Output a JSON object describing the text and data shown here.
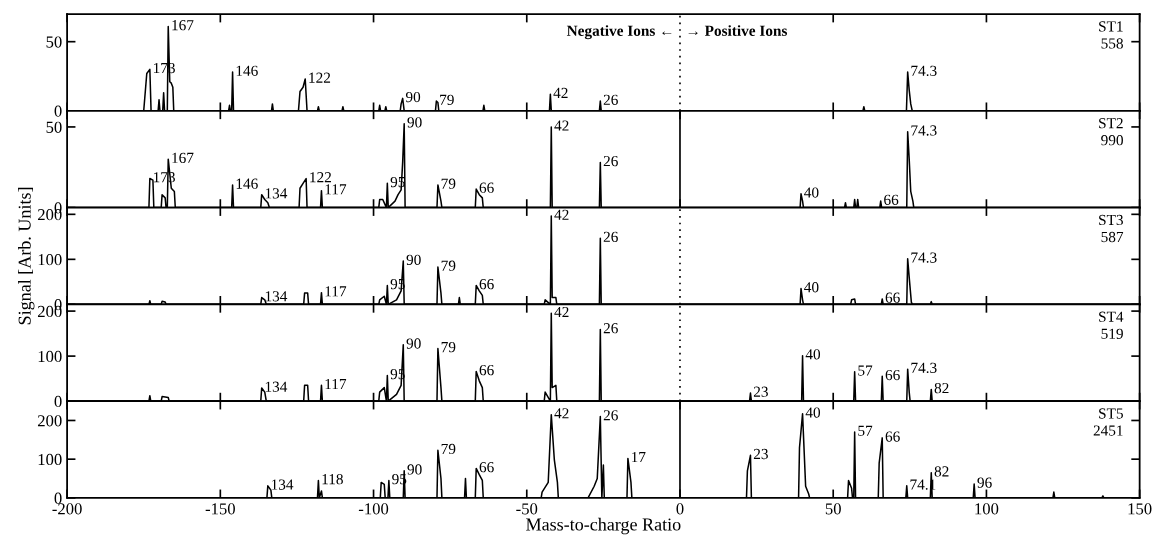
{
  "chart_data": [
    {
      "type": "line",
      "color": "#000000",
      "xlim": [
        -200,
        150
      ],
      "xticks": [
        -200,
        -150,
        -100,
        -50,
        0,
        50,
        100,
        150
      ],
      "ylim": [
        0,
        70
      ],
      "yticks": [
        0,
        50
      ],
      "tick_labels": "y",
      "x": [
        -200,
        -175,
        -174,
        -173,
        -172.6,
        -170.3,
        -170,
        -169.7,
        -168.8,
        -168.5,
        -168.2,
        -167.3,
        -167,
        -166.5,
        -166,
        -165.5,
        -165.2,
        -147.3,
        -147,
        -146.7,
        -146.3,
        -146,
        -145.7,
        -133.3,
        -133,
        -132.7,
        -124.5,
        -124,
        -123,
        -122.3,
        -121.7,
        -118.3,
        -118,
        -117.7,
        -110.3,
        -110,
        -109.7,
        -98.3,
        -98,
        -97.7,
        -96.3,
        -96,
        -95.7,
        -91.3,
        -91,
        -90.5,
        -90,
        -79.8,
        -79.5,
        -79,
        -78.7,
        -64.3,
        -64,
        -63.7,
        -42.6,
        -42.3,
        -42,
        -26.3,
        -26,
        -25.7,
        59.7,
        60,
        60.3,
        73.9,
        74.3,
        74.8,
        75.3,
        75.8,
        150
      ],
      "values": [
        0,
        0,
        27,
        30,
        0,
        0,
        8,
        0,
        0,
        13,
        0,
        0,
        61,
        21,
        20,
        17,
        0,
        0,
        4,
        0,
        0,
        28,
        0,
        0,
        5,
        0,
        0,
        14,
        17,
        23,
        0,
        0,
        3,
        0,
        0,
        3,
        0,
        0,
        4,
        0,
        0,
        3,
        0,
        0,
        5,
        9,
        0,
        0,
        7,
        6,
        0,
        0,
        4,
        0,
        0,
        12,
        0,
        0,
        7,
        0,
        0,
        3,
        0,
        0,
        28,
        15,
        5,
        0,
        0
      ],
      "ref_lines": [
        {
          "axis": "x",
          "value": 0,
          "line_style": "dotted"
        }
      ],
      "annotations": [
        {
          "text": "173",
          "x": -173,
          "y": 30
        },
        {
          "text": "167",
          "x": -167,
          "y": 61
        },
        {
          "text": "146",
          "x": -146,
          "y": 28
        },
        {
          "text": "122",
          "x": -122.3,
          "y": 23
        },
        {
          "text": "90",
          "x": -90.5,
          "y": 9
        },
        {
          "text": "79",
          "x": -79.5,
          "y": 7
        },
        {
          "text": "42",
          "x": -42.3,
          "y": 12
        },
        {
          "text": "26",
          "x": -26,
          "y": 7
        },
        {
          "text": "74.3",
          "x": 74.3,
          "y": 28
        },
        "ST1\n558",
        "Negative Ions ←",
        "→ Positive Ions"
      ]
    },
    {
      "type": "line",
      "color": "#000000",
      "xlim": [
        -200,
        150
      ],
      "xticks": [
        -200,
        -150,
        -100,
        -50,
        0,
        50,
        100,
        150
      ],
      "ylim": [
        0,
        60
      ],
      "yticks": [
        0,
        50
      ],
      "tick_labels": "y",
      "x": [
        -200,
        -173.3,
        -173,
        -172,
        -171.7,
        -169.3,
        -169,
        -168,
        -167.7,
        -167.3,
        -167,
        -166,
        -165,
        -164.7,
        -146.3,
        -146,
        -145.7,
        -136.8,
        -136.5,
        -135.5,
        -134.5,
        -134,
        -124.3,
        -124,
        -123,
        -122,
        -121.7,
        -117.3,
        -117,
        -116.7,
        -98.3,
        -98,
        -97,
        -95.8,
        -95.5,
        -95.2,
        -93,
        -92,
        -91,
        -90.5,
        -90,
        -89.7,
        -79.3,
        -79,
        -78,
        -77.7,
        -66.8,
        -66.5,
        -65.5,
        -64.5,
        -64.2,
        -42.3,
        -42,
        -41.7,
        -26.3,
        -26,
        -25.7,
        39.2,
        39.5,
        40,
        40.3,
        53.7,
        54,
        54.3,
        56.7,
        57,
        57.3,
        57.7,
        58,
        58.3,
        65.2,
        65.5,
        65.8,
        74,
        74.3,
        74.8,
        75.3,
        76,
        76.3,
        150
      ],
      "values": [
        0,
        0,
        18,
        17,
        0,
        0,
        8,
        6,
        0,
        0,
        30,
        12,
        10,
        0,
        0,
        14,
        0,
        0,
        8,
        5,
        3,
        0,
        0,
        12,
        15,
        18,
        0,
        0,
        10.5,
        0,
        0,
        5,
        5,
        0,
        15,
        0,
        4,
        8,
        11,
        28,
        52,
        0,
        0,
        14,
        4,
        0,
        0,
        11.5,
        8,
        6,
        0,
        0,
        50,
        0,
        0,
        28,
        0,
        0,
        8.5,
        4,
        0,
        0,
        3,
        0,
        0,
        5,
        0,
        0,
        5,
        0,
        0,
        4,
        0,
        0,
        47,
        30,
        10,
        4,
        0,
        0
      ],
      "ref_lines": [
        {
          "axis": "x",
          "value": 0,
          "line_style": "solid"
        }
      ],
      "annotations": [
        {
          "text": "173",
          "x": -173,
          "y": 18
        },
        {
          "text": "167",
          "x": -167,
          "y": 30
        },
        {
          "text": "146",
          "x": -146,
          "y": 14
        },
        {
          "text": "134",
          "x": -136.5,
          "y": 8
        },
        {
          "text": "122",
          "x": -122,
          "y": 18
        },
        {
          "text": "117",
          "x": -117,
          "y": 10.5
        },
        {
          "text": "95",
          "x": -95.5,
          "y": 15
        },
        {
          "text": "90",
          "x": -90,
          "y": 52
        },
        {
          "text": "79",
          "x": -79,
          "y": 14
        },
        {
          "text": "66",
          "x": -66.5,
          "y": 11.5
        },
        {
          "text": "42",
          "x": -42,
          "y": 50
        },
        {
          "text": "26",
          "x": -26,
          "y": 28
        },
        {
          "text": "40",
          "x": 39.5,
          "y": 8.5
        },
        {
          "text": "66",
          "x": 65.5,
          "y": 4
        },
        {
          "text": "74.3",
          "x": 74.3,
          "y": 47
        },
        "ST2\n990"
      ]
    },
    {
      "type": "line",
      "color": "#000000",
      "xlim": [
        -200,
        150
      ],
      "xticks": [
        -200,
        -150,
        -100,
        -50,
        0,
        50,
        100,
        150
      ],
      "ylim": [
        0,
        215
      ],
      "yticks": [
        0,
        100,
        200
      ],
      "tick_labels": "y",
      "ylabel": "Signal [Arb. Units]",
      "x": [
        -200,
        -173.3,
        -173,
        -172.7,
        -169.3,
        -169,
        -168,
        -167.7,
        -136.8,
        -136.5,
        -135.5,
        -135,
        -122.8,
        -122.5,
        -121.5,
        -121.2,
        -117.3,
        -117,
        -116.7,
        -98.3,
        -98,
        -96.5,
        -95.8,
        -95.5,
        -95.2,
        -92.5,
        -91,
        -90.3,
        -90,
        -79.3,
        -79,
        -78,
        -77.7,
        -72.3,
        -72,
        -71.7,
        -66.8,
        -66.5,
        -65.5,
        -64.5,
        -64.2,
        -44.3,
        -44,
        -42.3,
        -42,
        -41.7,
        -40.5,
        -40.2,
        -26.3,
        -26,
        -25.7,
        39.2,
        39.5,
        40,
        40.3,
        55.7,
        56,
        57,
        57.3,
        65.7,
        66,
        66.3,
        74,
        74.3,
        74.8,
        75.5,
        75.8,
        81.7,
        82,
        82.3,
        150
      ],
      "values": [
        0,
        0,
        8,
        0,
        0,
        7,
        5,
        0,
        0,
        15,
        10,
        0,
        0,
        25,
        25,
        0,
        0,
        26,
        0,
        0,
        10,
        18,
        0,
        42,
        0,
        10,
        30,
        96,
        0,
        0,
        83,
        25,
        0,
        0,
        15,
        0,
        0,
        42,
        30,
        20,
        0,
        0,
        10,
        0,
        196,
        15,
        15,
        0,
        0,
        147,
        0,
        0,
        35,
        10,
        0,
        0,
        10,
        12,
        0,
        0,
        12,
        0,
        0,
        101,
        60,
        5,
        0,
        0,
        6,
        0,
        0
      ],
      "ref_lines": [
        {
          "axis": "x",
          "value": 0,
          "line_style": "dotted"
        }
      ],
      "annotations": [
        {
          "text": "134",
          "x": -136.5,
          "y": 15
        },
        {
          "text": "117",
          "x": -117,
          "y": 26
        },
        {
          "text": "95",
          "x": -95.5,
          "y": 42
        },
        {
          "text": "90",
          "x": -90.3,
          "y": 96
        },
        {
          "text": "79",
          "x": -79,
          "y": 83
        },
        {
          "text": "66",
          "x": -66.5,
          "y": 42
        },
        {
          "text": "42",
          "x": -42,
          "y": 196
        },
        {
          "text": "26",
          "x": -26,
          "y": 147
        },
        {
          "text": "40",
          "x": 39.5,
          "y": 35
        },
        {
          "text": "66",
          "x": 66,
          "y": 12
        },
        {
          "text": "74.3",
          "x": 74.3,
          "y": 101
        },
        "ST3\n587"
      ]
    },
    {
      "type": "line",
      "color": "#000000",
      "xlim": [
        -200,
        150
      ],
      "xticks": [
        -200,
        -150,
        -100,
        -50,
        0,
        50,
        100,
        150
      ],
      "ylim": [
        0,
        215
      ],
      "yticks": [
        0,
        100,
        200
      ],
      "tick_labels": "y",
      "x": [
        -200,
        -173.3,
        -173,
        -172.7,
        -169.3,
        -169,
        -167,
        -166.7,
        -136.8,
        -136.5,
        -135.5,
        -135,
        -122.8,
        -122.5,
        -121.5,
        -121.2,
        -117.3,
        -117,
        -116.7,
        -98.3,
        -98,
        -96.5,
        -95.8,
        -95.5,
        -95.2,
        -92.5,
        -91,
        -90.3,
        -90,
        -79.3,
        -79,
        -78,
        -77.7,
        -66.8,
        -66.5,
        -65.5,
        -64.5,
        -64.2,
        -44.3,
        -44,
        -42.3,
        -42,
        -41.7,
        -40.5,
        -40.2,
        -26.3,
        -26,
        -25.7,
        22.7,
        23,
        23.3,
        39.7,
        40,
        40.3,
        56.7,
        57,
        57.3,
        65.7,
        66,
        66.3,
        74,
        74.3,
        74.8,
        75.1,
        81.7,
        82,
        82.3,
        150
      ],
      "values": [
        0,
        0,
        12,
        0,
        0,
        10,
        8,
        0,
        0,
        29,
        20,
        0,
        0,
        35,
        35,
        0,
        0,
        35,
        0,
        0,
        20,
        30,
        0,
        57,
        0,
        15,
        35,
        125,
        0,
        0,
        117,
        30,
        0,
        0,
        66,
        45,
        30,
        0,
        0,
        20,
        0,
        195,
        30,
        35,
        0,
        0,
        159,
        0,
        0,
        18,
        0,
        0,
        101,
        0,
        0,
        65,
        0,
        0,
        55,
        0,
        0,
        71,
        20,
        0,
        0,
        26,
        0,
        0
      ],
      "ref_lines": [
        {
          "axis": "x",
          "value": 0,
          "line_style": "dotted"
        }
      ],
      "annotations": [
        {
          "text": "134",
          "x": -136.5,
          "y": 29
        },
        {
          "text": "117",
          "x": -117,
          "y": 35
        },
        {
          "text": "95",
          "x": -95.5,
          "y": 57
        },
        {
          "text": "90",
          "x": -90.3,
          "y": 125
        },
        {
          "text": "79",
          "x": -79,
          "y": 117
        },
        {
          "text": "66",
          "x": -66.5,
          "y": 66
        },
        {
          "text": "42",
          "x": -42,
          "y": 195
        },
        {
          "text": "26",
          "x": -26,
          "y": 159
        },
        {
          "text": "23",
          "x": 23,
          "y": 18
        },
        {
          "text": "40",
          "x": 40,
          "y": 101
        },
        {
          "text": "57",
          "x": 57,
          "y": 65
        },
        {
          "text": "66",
          "x": 66,
          "y": 55
        },
        {
          "text": "74.3",
          "x": 74.3,
          "y": 71
        },
        {
          "text": "82",
          "x": 82,
          "y": 26
        },
        "ST4\n519"
      ]
    },
    {
      "type": "line",
      "color": "#000000",
      "xlim": [
        -200,
        150
      ],
      "xticks": [
        -200,
        -150,
        -100,
        -50,
        0,
        50,
        100,
        150
      ],
      "ylim": [
        0,
        250
      ],
      "yticks": [
        0,
        100,
        200
      ],
      "xlabel": "Mass-to-charge Ratio",
      "x": [
        -200,
        -134.8,
        -134.5,
        -133.5,
        -133.2,
        -118.3,
        -118,
        -117.7,
        -117,
        -116.7,
        -97.8,
        -97.5,
        -96.5,
        -96.2,
        -95.3,
        -95,
        -94.7,
        -90.3,
        -90,
        -89.7,
        -79.3,
        -79,
        -78,
        -77.7,
        -70.3,
        -70,
        -69.7,
        -66.8,
        -66.5,
        -65.5,
        -64.5,
        -64.2,
        -45.3,
        -45,
        -43,
        -42,
        -41,
        -40,
        -39.7,
        -30,
        -28,
        -27,
        -26,
        -25.5,
        -25,
        -24.7,
        -17.3,
        -17,
        -16,
        -15.7,
        21.7,
        22,
        23,
        23.3,
        38.7,
        39,
        40,
        41,
        42,
        42.3,
        54.7,
        55,
        56,
        56.3,
        56.7,
        57,
        57.3,
        64.7,
        65,
        66,
        66.3,
        73.7,
        74,
        74.3,
        81.7,
        82,
        82.3,
        95.7,
        96,
        96.3,
        121.7,
        122,
        122.3,
        137.7,
        138,
        138.3,
        150
      ],
      "values": [
        0,
        0,
        31,
        20,
        0,
        0,
        45,
        0,
        18,
        0,
        0,
        40,
        35,
        0,
        0,
        45,
        0,
        0,
        70,
        0,
        0,
        123,
        50,
        0,
        0,
        50,
        0,
        0,
        76,
        60,
        45,
        0,
        0,
        15,
        40,
        215,
        98,
        40,
        0,
        0,
        30,
        50,
        210,
        0,
        85,
        0,
        0,
        102,
        40,
        0,
        0,
        70,
        110,
        0,
        0,
        130,
        217,
        30,
        10,
        0,
        0,
        45,
        25,
        0,
        0,
        170,
        0,
        0,
        90,
        155,
        0,
        0,
        31,
        0,
        0,
        65,
        0,
        0,
        36,
        0,
        0,
        15,
        0,
        0,
        5,
        0,
        0
      ],
      "ref_lines": [
        {
          "axis": "x",
          "value": 0,
          "line_style": "solid"
        }
      ],
      "annotations": [
        {
          "text": "134",
          "x": -134.5,
          "y": 31
        },
        {
          "text": "118",
          "x": -118,
          "y": 45
        },
        {
          "text": "95",
          "x": -95,
          "y": 45
        },
        {
          "text": "90",
          "x": -90,
          "y": 70
        },
        {
          "text": "79",
          "x": -79,
          "y": 123
        },
        {
          "text": "66",
          "x": -66.5,
          "y": 76
        },
        {
          "text": "42",
          "x": -42,
          "y": 215
        },
        {
          "text": "26",
          "x": -26,
          "y": 210
        },
        {
          "text": "17",
          "x": -17,
          "y": 102
        },
        {
          "text": "23",
          "x": 23,
          "y": 110
        },
        {
          "text": "40",
          "x": 40,
          "y": 217
        },
        {
          "text": "57",
          "x": 57,
          "y": 170
        },
        {
          "text": "66",
          "x": 66,
          "y": 155
        },
        {
          "text": "74.1",
          "x": 74,
          "y": 31
        },
        {
          "text": "82",
          "x": 82,
          "y": 65
        },
        {
          "text": "96",
          "x": 96,
          "y": 36
        },
        "ST5\n2451"
      ]
    }
  ]
}
